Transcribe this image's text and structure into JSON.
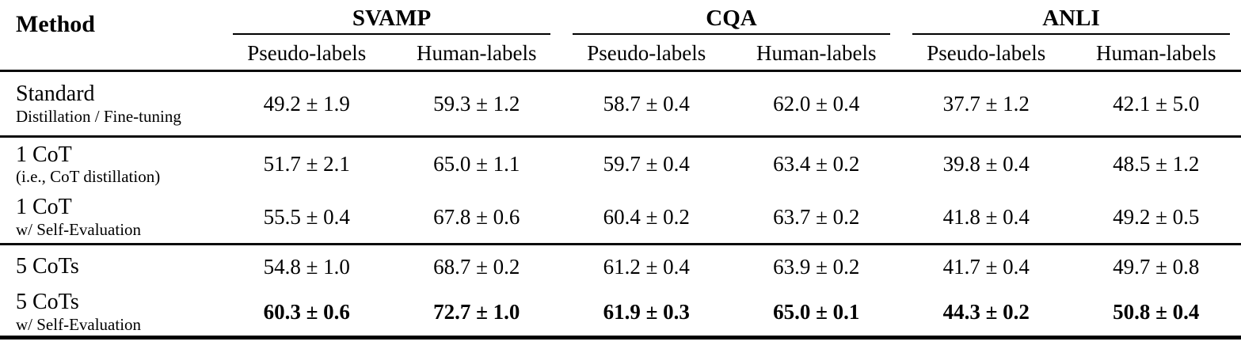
{
  "table": {
    "method_header": "Method",
    "groups": [
      {
        "label": "SVAMP"
      },
      {
        "label": "CQA"
      },
      {
        "label": "ANLI"
      }
    ],
    "subheaders": {
      "pseudo": "Pseudo-labels",
      "human": "Human-labels"
    },
    "rows": [
      {
        "name": "Standard",
        "subtitle": "Distillation / Fine-tuning",
        "bold": false,
        "values": [
          "49.2 ± 1.9",
          "59.3 ± 1.2",
          "58.7 ± 0.4",
          "62.0 ± 0.4",
          "37.7 ± 1.2",
          "42.1 ± 5.0"
        ]
      },
      {
        "name": "1 CoT",
        "subtitle": "(i.e., CoT distillation)",
        "bold": false,
        "values": [
          "51.7 ± 2.1",
          "65.0 ± 1.1",
          "59.7 ± 0.4",
          "63.4 ± 0.2",
          "39.8 ± 0.4",
          "48.5 ± 1.2"
        ]
      },
      {
        "name": "1 CoT",
        "subtitle": "w/ Self-Evaluation",
        "bold": false,
        "values": [
          "55.5 ± 0.4",
          "67.8 ± 0.6",
          "60.4 ± 0.2",
          "63.7 ± 0.2",
          "41.8 ± 0.4",
          "49.2 ± 0.5"
        ]
      },
      {
        "name": "5 CoTs",
        "subtitle": "",
        "bold": false,
        "values": [
          "54.8 ± 1.0",
          "68.7 ± 0.2",
          "61.2 ± 0.4",
          "63.9 ± 0.2",
          "41.7 ± 0.4",
          "49.7 ± 0.8"
        ]
      },
      {
        "name": "5 CoTs",
        "subtitle": "w/ Self-Evaluation",
        "bold": true,
        "values": [
          "60.3 ± 0.6",
          "72.7 ± 1.0",
          "61.9 ± 0.3",
          "65.0 ± 0.1",
          "44.3 ± 0.2",
          "50.8 ± 0.4"
        ]
      }
    ]
  }
}
